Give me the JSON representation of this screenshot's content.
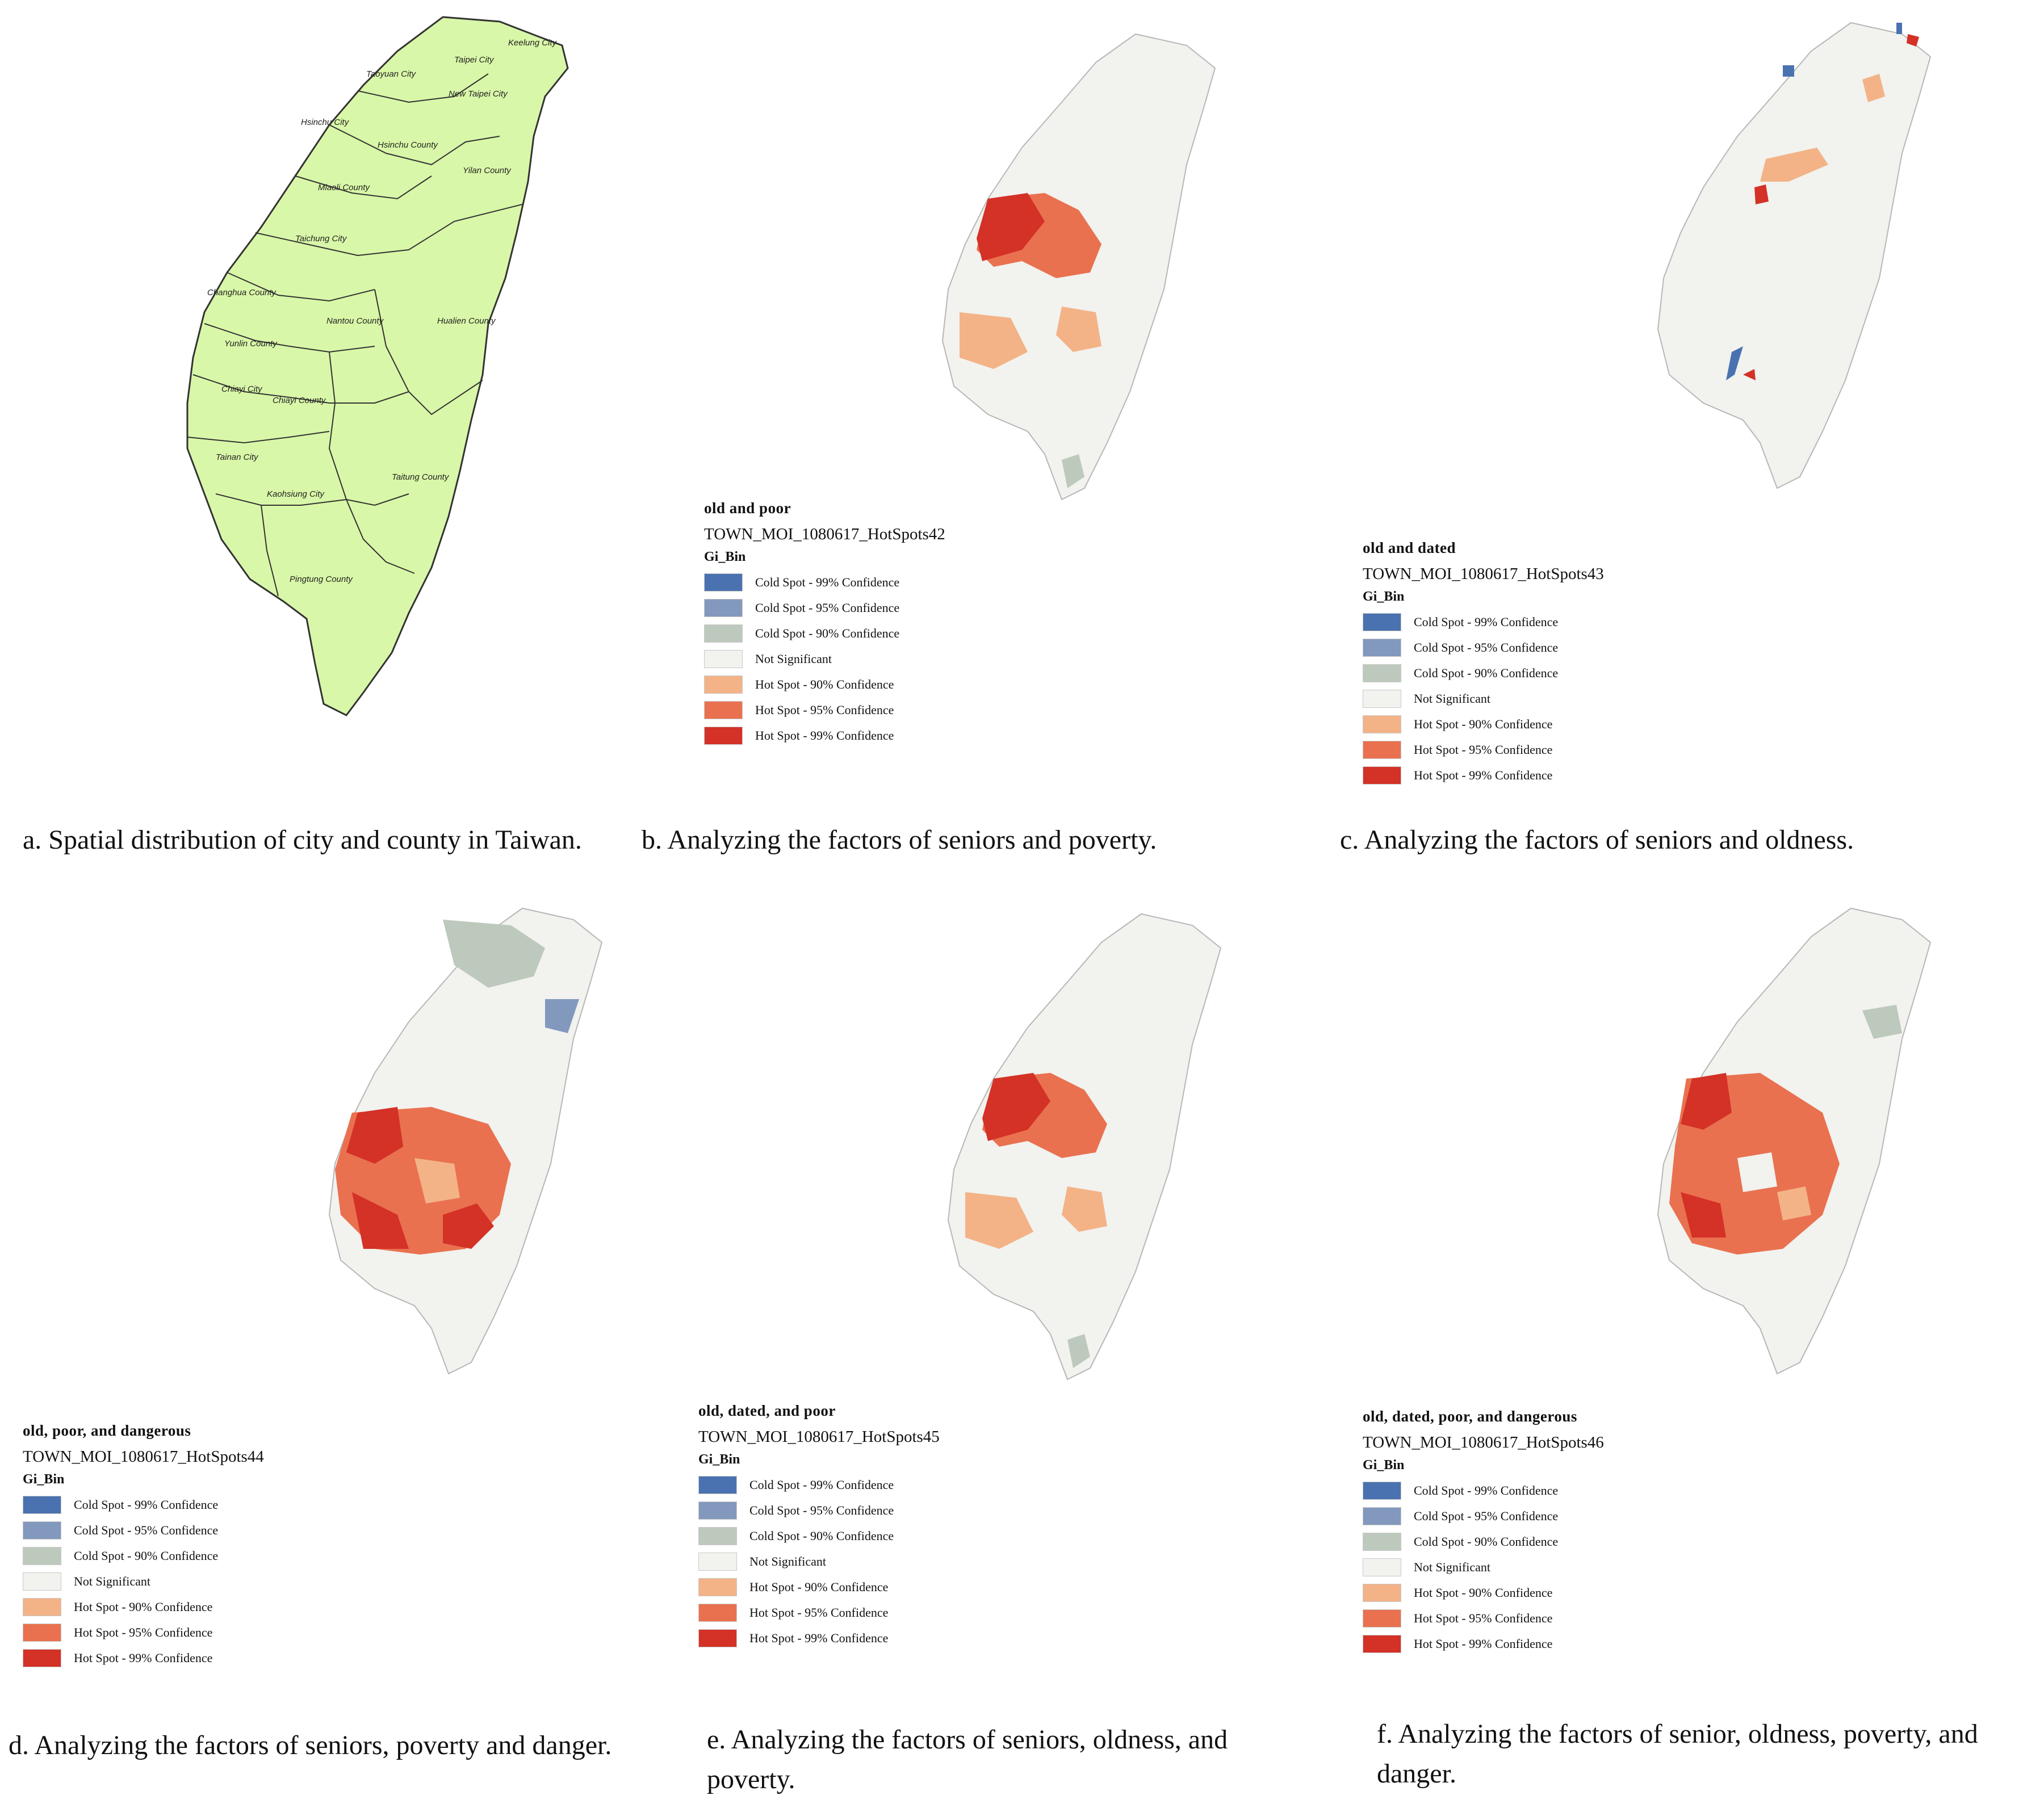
{
  "colors": {
    "cold99": "#4a72b0",
    "cold95": "#8299bd",
    "cold90": "#bdc9bd",
    "not_sig": "#f2f2ef",
    "hot90": "#f3b387",
    "hot95": "#e9714f",
    "hot99": "#d43127",
    "base_map": "#d9f7a8",
    "boundary": "#b7b7b7"
  },
  "map_a": {
    "labels": [
      "Keelung City",
      "Taipei City",
      "New Taipei City",
      "Taoyuan City",
      "Hsinchu City",
      "Hsinchu County",
      "Yilan County",
      "Miaoli County",
      "Taichung City",
      "Changhua County",
      "Nantou County",
      "Hualien County",
      "Yunlin County",
      "Chiayi City",
      "Chiayi County",
      "Tainan City",
      "Taitung County",
      "Kaohsiung City",
      "Pingtung County"
    ]
  },
  "legend_items": [
    "Cold Spot - 99% Confidence",
    "Cold Spot - 95% Confidence",
    "Cold Spot - 90% Confidence",
    "Not Significant",
    "Hot Spot - 90% Confidence",
    "Hot Spot - 95% Confidence",
    "Hot Spot - 99% Confidence"
  ],
  "legend_field": "Gi_Bin",
  "panels": {
    "a": {
      "caption": "a. Spatial distribution of city and county in Taiwan."
    },
    "b": {
      "title": "old and poor",
      "layer": "TOWN_MOI_1080617_HotSpots42",
      "caption": "b. Analyzing  the factors of seniors and poverty."
    },
    "c": {
      "title": "old and dated",
      "layer": "TOWN_MOI_1080617_HotSpots43",
      "caption": "c. Analyzing  the factors of seniors and oldness."
    },
    "d": {
      "title": "old, poor, and dangerous",
      "layer": "TOWN_MOI_1080617_HotSpots44",
      "caption": "d. Analyzing  the factors of seniors, poverty and danger."
    },
    "e": {
      "title": "old, dated, and poor",
      "layer": "TOWN_MOI_1080617_HotSpots45",
      "caption": "e. Analyzing  the factors of seniors, oldness, and poverty."
    },
    "f": {
      "title": "old, dated, poor, and dangerous",
      "layer": "TOWN_MOI_1080617_HotSpots46",
      "caption": "f. Analyzing  the factors of senior, oldness, poverty, and danger."
    }
  }
}
